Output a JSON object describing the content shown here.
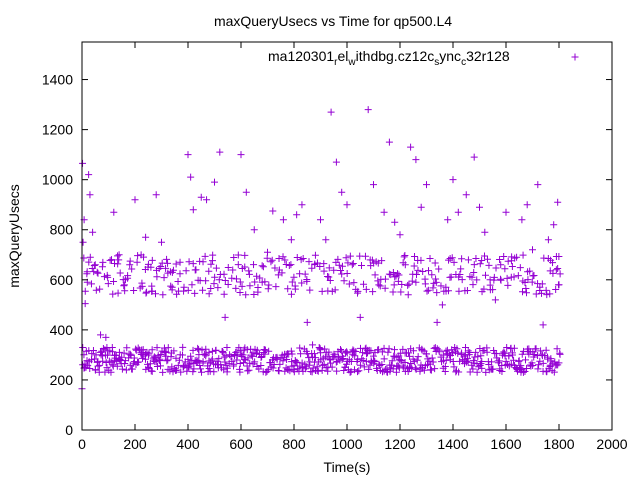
{
  "chart_data": {
    "type": "scatter",
    "title": "maxQueryUsecs vs Time for qp500.L4",
    "xlabel": "Time(s)",
    "ylabel": "maxQueryUsecs",
    "xlim": [
      0,
      2000
    ],
    "ylim": [
      0,
      1550
    ],
    "xticks": [
      "0",
      "200",
      "400",
      "600",
      "800",
      "1000",
      "1200",
      "1400",
      "1600",
      "1800",
      "2000"
    ],
    "yticks": [
      "0",
      "200",
      "400",
      "600",
      "800",
      "1000",
      "1200",
      "1400"
    ],
    "legend": "top-right",
    "grid": false,
    "marker": "plus",
    "color": "#9400d3",
    "series": [
      {
        "name": "ma120301_rel_withdbg.cz12c_sync_c32r128",
        "legend_main": "ma120301",
        "legend_parts": [
          {
            "sub": "r",
            "text": "el"
          },
          {
            "sub": "w",
            "text": "ithdbg.cz12c"
          },
          {
            "sub": "s",
            "text": "ync"
          },
          {
            "sub": "c",
            "text": "32r128"
          }
        ],
        "points": [
          [
            0,
            165
          ],
          [
            2,
            1065
          ],
          [
            4,
            750
          ],
          [
            8,
            840
          ],
          [
            12,
            505
          ],
          [
            20,
            590
          ],
          [
            25,
            1020
          ],
          [
            30,
            940
          ],
          [
            40,
            790
          ],
          [
            50,
            660
          ],
          [
            70,
            380
          ],
          [
            90,
            370
          ],
          [
            120,
            870
          ],
          [
            140,
            700
          ],
          [
            160,
            580
          ],
          [
            180,
            660
          ],
          [
            200,
            920
          ],
          [
            240,
            770
          ],
          [
            260,
            650
          ],
          [
            280,
            940
          ],
          [
            300,
            750
          ],
          [
            340,
            560
          ],
          [
            370,
            670
          ],
          [
            380,
            330
          ],
          [
            400,
            1100
          ],
          [
            410,
            1010
          ],
          [
            420,
            880
          ],
          [
            430,
            640
          ],
          [
            450,
            930
          ],
          [
            470,
            920
          ],
          [
            500,
            990
          ],
          [
            520,
            1110
          ],
          [
            540,
            450
          ],
          [
            580,
            310
          ],
          [
            600,
            1100
          ],
          [
            620,
            950
          ],
          [
            650,
            800
          ],
          [
            680,
            590
          ],
          [
            700,
            710
          ],
          [
            720,
            875
          ],
          [
            760,
            840
          ],
          [
            790,
            760
          ],
          [
            810,
            860
          ],
          [
            830,
            900
          ],
          [
            850,
            430
          ],
          [
            870,
            340
          ],
          [
            900,
            840
          ],
          [
            920,
            760
          ],
          [
            940,
            1270
          ],
          [
            960,
            1070
          ],
          [
            980,
            950
          ],
          [
            1000,
            900
          ],
          [
            1020,
            660
          ],
          [
            1050,
            450
          ],
          [
            1080,
            1280
          ],
          [
            1100,
            980
          ],
          [
            1120,
            580
          ],
          [
            1140,
            870
          ],
          [
            1160,
            1150
          ],
          [
            1180,
            830
          ],
          [
            1200,
            780
          ],
          [
            1220,
            660
          ],
          [
            1240,
            1130
          ],
          [
            1260,
            1080
          ],
          [
            1280,
            890
          ],
          [
            1300,
            980
          ],
          [
            1320,
            620
          ],
          [
            1340,
            430
          ],
          [
            1360,
            500
          ],
          [
            1380,
            840
          ],
          [
            1400,
            1000
          ],
          [
            1420,
            870
          ],
          [
            1450,
            940
          ],
          [
            1480,
            1090
          ],
          [
            1500,
            890
          ],
          [
            1520,
            790
          ],
          [
            1540,
            600
          ],
          [
            1560,
            520
          ],
          [
            1580,
            660
          ],
          [
            1600,
            870
          ],
          [
            1620,
            610
          ],
          [
            1640,
            690
          ],
          [
            1660,
            840
          ],
          [
            1680,
            900
          ],
          [
            1700,
            720
          ],
          [
            1720,
            980
          ],
          [
            1740,
            420
          ],
          [
            1760,
            760
          ],
          [
            1780,
            820
          ],
          [
            1790,
            640
          ],
          [
            1795,
            910
          ],
          [
            1798,
            580
          ]
        ],
        "clusters": [
          {
            "x_start": 0,
            "x_end": 1800,
            "step": 4,
            "y_low": 230,
            "y_high": 330,
            "note": "dense band"
          },
          {
            "x_start": 0,
            "x_end": 1800,
            "step": 8,
            "y_low": 540,
            "y_high": 700,
            "note": "upper band"
          }
        ]
      }
    ]
  }
}
